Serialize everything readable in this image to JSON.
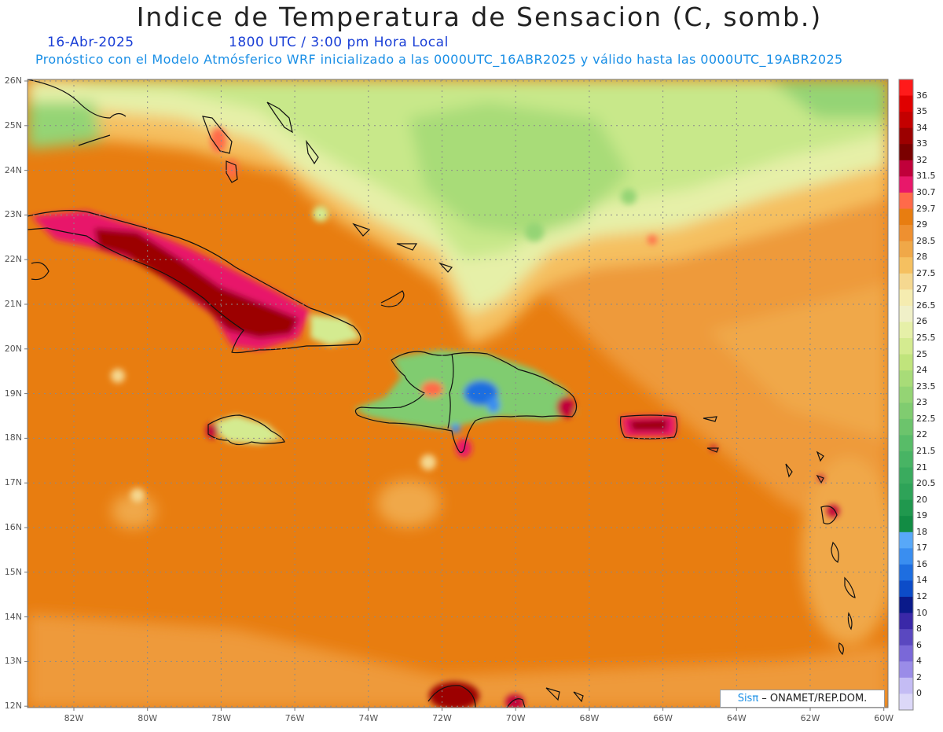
{
  "title": "Indice de Temperatura de Sensacion (C, somb.)",
  "date": "16-Abr-2025",
  "time": "1800 UTC / 3:00 pm Hora Local",
  "forecast": "Pronóstico con el Modelo Atmósferico WRF inicializado a las 0000UTC_16ABR2025 y válido hasta las  0000UTC_19ABR2025",
  "lat_labels": [
    "26N",
    "25N",
    "24N",
    "23N",
    "22N",
    "21N",
    "20N",
    "19N",
    "18N",
    "17N",
    "16N",
    "15N",
    "14N",
    "13N",
    "12N"
  ],
  "lon_labels": [
    "82W",
    "80W",
    "78W",
    "76W",
    "74W",
    "72W",
    "70W",
    "68W",
    "66W",
    "64W",
    "62W",
    "60W"
  ],
  "colorbar": {
    "labels": [
      "36",
      "35",
      "34",
      "33",
      "32",
      "31.5",
      "30.7",
      "29.7",
      "29",
      "28.5",
      "28",
      "27.5",
      "27",
      "26.5",
      "26",
      "25.5",
      "25",
      "24",
      "23.5",
      "23",
      "22.5",
      "22",
      "21.5",
      "21",
      "20.5",
      "20",
      "19",
      "18",
      "17",
      "16",
      "14",
      "12",
      "10",
      "8",
      "6",
      "4",
      "2",
      "0"
    ],
    "colors": [
      "#ff1a1a",
      "#e00000",
      "#c40000",
      "#9c0000",
      "#7a0000",
      "#c0003a",
      "#e8186a",
      "#ff6a4a",
      "#e87d10",
      "#ee9030",
      "#f0a848",
      "#f5c060",
      "#f5d890",
      "#f5ecb0",
      "#f0f0c8",
      "#e6f0a8",
      "#d4eb90",
      "#c0e47c",
      "#a8dc78",
      "#94d474",
      "#80cc70",
      "#6cc46c",
      "#58bc68",
      "#48b464",
      "#3aab5e",
      "#2ea358",
      "#20984e",
      "#128c44",
      "#58a8f8",
      "#3a8ef0",
      "#1e6ee0",
      "#0c4cc8",
      "#0a1a8a",
      "#3a28a8",
      "#5a48c0",
      "#7a68d8",
      "#9a8ce8",
      "#c4bcf4",
      "#dcd8f8"
    ]
  },
  "credit": {
    "brand": "Sisπ",
    "org": " – ONAMET/REP.DOM."
  },
  "colors": {
    "ocean_base": "#e87d10",
    "land_hot": "#9c0000",
    "land_cool": "#48b464"
  }
}
